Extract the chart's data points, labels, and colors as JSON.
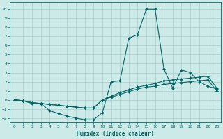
{
  "title": "",
  "xlabel": "Humidex (Indice chaleur)",
  "ylabel": "",
  "bg_color": "#cceae8",
  "line_color": "#006666",
  "grid_color": "#aacccc",
  "xlim": [
    -0.5,
    23.5
  ],
  "ylim": [
    -2.5,
    10.8
  ],
  "xticks": [
    0,
    1,
    2,
    3,
    4,
    5,
    6,
    7,
    8,
    9,
    10,
    11,
    12,
    13,
    14,
    15,
    16,
    17,
    18,
    19,
    20,
    21,
    22,
    23
  ],
  "yticks": [
    -2,
    -1,
    0,
    1,
    2,
    3,
    4,
    5,
    6,
    7,
    8,
    9,
    10
  ],
  "series": [
    {
      "x": [
        0,
        1,
        2,
        3,
        4,
        5,
        6,
        7,
        8,
        9,
        10,
        11,
        12,
        13,
        14,
        15,
        16,
        17,
        18,
        19,
        20,
        21,
        22,
        23
      ],
      "y": [
        0.0,
        -0.1,
        -0.4,
        -0.4,
        -1.2,
        -1.5,
        -1.8,
        -2.0,
        -2.2,
        -2.2,
        -1.4,
        2.0,
        2.1,
        6.8,
        7.2,
        10.0,
        10.0,
        3.4,
        1.3,
        3.3,
        3.0,
        2.0,
        1.5,
        1.2
      ]
    },
    {
      "x": [
        0,
        1,
        2,
        3,
        4,
        5,
        6,
        7,
        8,
        9,
        10,
        11,
        12,
        13,
        14,
        15,
        16,
        17,
        18,
        19,
        20,
        21,
        22,
        23
      ],
      "y": [
        0.0,
        -0.1,
        -0.3,
        -0.4,
        -0.5,
        -0.6,
        -0.7,
        -0.8,
        -0.9,
        -0.9,
        0.0,
        0.4,
        0.8,
        1.1,
        1.4,
        1.6,
        1.8,
        2.1,
        2.2,
        2.3,
        2.4,
        2.5,
        2.6,
        1.3
      ]
    },
    {
      "x": [
        0,
        1,
        2,
        3,
        4,
        5,
        6,
        7,
        8,
        9,
        10,
        11,
        12,
        13,
        14,
        15,
        16,
        17,
        18,
        19,
        20,
        21,
        22,
        23
      ],
      "y": [
        0.0,
        -0.1,
        -0.3,
        -0.4,
        -0.5,
        -0.6,
        -0.7,
        -0.8,
        -0.9,
        -0.9,
        0.0,
        0.3,
        0.6,
        0.9,
        1.2,
        1.4,
        1.5,
        1.7,
        1.8,
        1.9,
        2.0,
        2.1,
        2.2,
        1.0
      ]
    }
  ]
}
